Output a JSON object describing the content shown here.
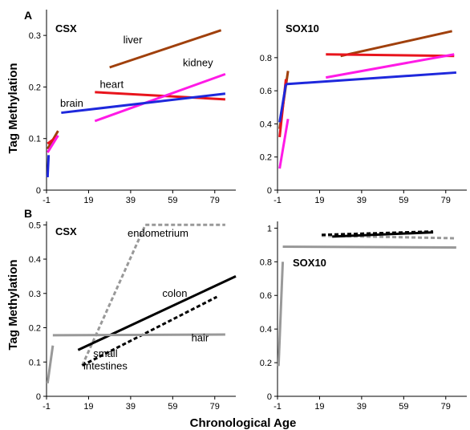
{
  "figure": {
    "xlabel": "Chronological Age",
    "ylabel": "Tag Methylation",
    "panel_labels": [
      "A",
      "B"
    ]
  },
  "chart_data": [
    {
      "id": "A-left",
      "type": "line",
      "panel": "A",
      "title": "CSX",
      "xlim": [
        -1,
        89
      ],
      "ylim": [
        0,
        0.35
      ],
      "xticks": [
        -1,
        19,
        39,
        59,
        79
      ],
      "yticks": [
        0,
        0.1,
        0.2,
        0.3
      ],
      "ytick_labels": [
        "0",
        "0.1",
        "0.2",
        "0.3"
      ],
      "series": [
        {
          "name": "liver",
          "color": "#a0400c",
          "dash": "solid",
          "segments": [
            [
              [
                -0.5,
                0.08
              ],
              [
                4.5,
                0.115
              ]
            ],
            [
              [
                29,
                0.238
              ],
              [
                82,
                0.31
              ]
            ]
          ]
        },
        {
          "name": "heart",
          "color": "#e8141c",
          "dash": "solid",
          "segments": [
            [
              [
                -0.5,
                0.09
              ],
              [
                4.5,
                0.105
              ]
            ],
            [
              [
                22,
                0.19
              ],
              [
                84,
                0.176
              ]
            ]
          ]
        },
        {
          "name": "kidney",
          "color": "#ff1ae6",
          "dash": "solid",
          "segments": [
            [
              [
                -0.5,
                0.073
              ],
              [
                4.5,
                0.106
              ]
            ],
            [
              [
                22,
                0.134
              ],
              [
                84,
                0.225
              ]
            ]
          ]
        },
        {
          "name": "brain",
          "color": "#1e28dc",
          "dash": "solid",
          "segments": [
            [
              [
                -0.5,
                0.025
              ],
              [
                0,
                0.068
              ]
            ],
            [
              [
                6,
                0.15
              ],
              [
                84,
                0.187
              ]
            ]
          ]
        }
      ],
      "annotations": [
        {
          "text": "liver",
          "x": 40,
          "y": 0.285
        },
        {
          "text": "heart",
          "x": 30,
          "y": 0.198
        },
        {
          "text": "kidney",
          "x": 71,
          "y": 0.24
        },
        {
          "text": "brain",
          "x": 11,
          "y": 0.162
        }
      ]
    },
    {
      "id": "A-right",
      "type": "line",
      "panel": "A",
      "title": "SOX10",
      "xlim": [
        -1,
        89
      ],
      "ylim": [
        0,
        1.09
      ],
      "xticks": [
        -1,
        19,
        39,
        59,
        79
      ],
      "yticks": [
        0,
        0.2,
        0.4,
        0.6,
        0.8
      ],
      "ytick_labels": [
        "0",
        "0.2",
        "0.4",
        "0.6",
        "0.8"
      ],
      "series": [
        {
          "name": "liver",
          "color": "#a0400c",
          "dash": "solid",
          "segments": [
            [
              [
                0,
                0.37
              ],
              [
                4,
                0.72
              ]
            ],
            [
              [
                29,
                0.81
              ],
              [
                82,
                0.96
              ]
            ]
          ]
        },
        {
          "name": "heart",
          "color": "#e8141c",
          "dash": "solid",
          "segments": [
            [
              [
                0,
                0.32
              ],
              [
                3,
                0.67
              ]
            ],
            [
              [
                22,
                0.82
              ],
              [
                83,
                0.81
              ]
            ]
          ]
        },
        {
          "name": "kidney",
          "color": "#ff1ae6",
          "dash": "solid",
          "segments": [
            [
              [
                0,
                0.13
              ],
              [
                4,
                0.43
              ]
            ],
            [
              [
                22,
                0.68
              ],
              [
                83,
                0.82
              ]
            ]
          ]
        },
        {
          "name": "brain",
          "color": "#1e28dc",
          "dash": "solid",
          "segments": [
            [
              [
                0,
                0.41
              ],
              [
                3,
                0.64
              ]
            ],
            [
              [
                3,
                0.64
              ],
              [
                84,
                0.71
              ]
            ]
          ]
        }
      ]
    },
    {
      "id": "B-left",
      "type": "line",
      "panel": "B",
      "title": "CSX",
      "xlim": [
        -1,
        89
      ],
      "ylim": [
        0,
        0.51
      ],
      "xticks": [
        -1,
        19,
        39,
        59,
        79
      ],
      "yticks": [
        0,
        0.1,
        0.2,
        0.3,
        0.4,
        0.5
      ],
      "ytick_labels": [
        "0",
        "0.1",
        "0.2",
        "0.3",
        "0.4",
        "0.5"
      ],
      "series": [
        {
          "name": "endometrium",
          "color": "#999999",
          "dash": "dash",
          "segments": [
            [
              [
                16,
                0.09
              ],
              [
                46,
                0.5
              ]
            ],
            [
              [
                46,
                0.5
              ],
              [
                84,
                0.5
              ]
            ]
          ]
        },
        {
          "name": "colon",
          "color": "#000000",
          "dash": "solid",
          "segments": [
            [
              [
                14,
                0.135
              ],
              [
                89,
                0.35
              ]
            ]
          ]
        },
        {
          "name": "small intestines",
          "color": "#000000",
          "dash": "dash",
          "segments": [
            [
              [
                16,
                0.09
              ],
              [
                80,
                0.29
              ]
            ]
          ]
        },
        {
          "name": "hair",
          "color": "#999999",
          "dash": "solid",
          "segments": [
            [
              [
                -0.5,
                0.038
              ],
              [
                2,
                0.148
              ]
            ],
            [
              [
                2,
                0.178
              ],
              [
                84,
                0.18
              ]
            ]
          ]
        }
      ],
      "annotations": [
        {
          "text": "endometrium",
          "x": 52,
          "y": 0.465
        },
        {
          "text": "colon",
          "x": 60,
          "y": 0.29
        },
        {
          "text": "hair",
          "x": 72,
          "y": 0.16
        },
        {
          "text": "small",
          "x": 27,
          "y": 0.115
        },
        {
          "text": "intestines",
          "x": 27,
          "y": 0.078
        }
      ]
    },
    {
      "id": "B-right",
      "type": "line",
      "panel": "B",
      "title": "SOX10",
      "xlim": [
        -1,
        89
      ],
      "ylim": [
        0,
        1.04
      ],
      "xticks": [
        -1,
        19,
        39,
        59,
        79
      ],
      "yticks": [
        0,
        0.2,
        0.4,
        0.6,
        0.8,
        1
      ],
      "ytick_labels": [
        "0",
        "0.2",
        "0.4",
        "0.6",
        "0.8",
        "1"
      ],
      "series": [
        {
          "name": "endometrium",
          "color": "#999999",
          "dash": "dash",
          "segments": [
            [
              [
                20,
                0.955
              ],
              [
                83,
                0.94
              ]
            ]
          ]
        },
        {
          "name": "small intestines",
          "color": "#000000",
          "dash": "dash",
          "segments": [
            [
              [
                20,
                0.96
              ],
              [
                73,
                0.98
              ]
            ]
          ]
        },
        {
          "name": "colon",
          "color": "#000000",
          "dash": "solid",
          "segments": [
            [
              [
                25,
                0.95
              ],
              [
                73,
                0.975
              ]
            ]
          ]
        },
        {
          "name": "hair",
          "color": "#999999",
          "dash": "solid",
          "segments": [
            [
              [
                -0.5,
                0.18
              ],
              [
                1.5,
                0.8
              ]
            ],
            [
              [
                1.5,
                0.89
              ],
              [
                84,
                0.885
              ]
            ]
          ]
        }
      ]
    }
  ]
}
